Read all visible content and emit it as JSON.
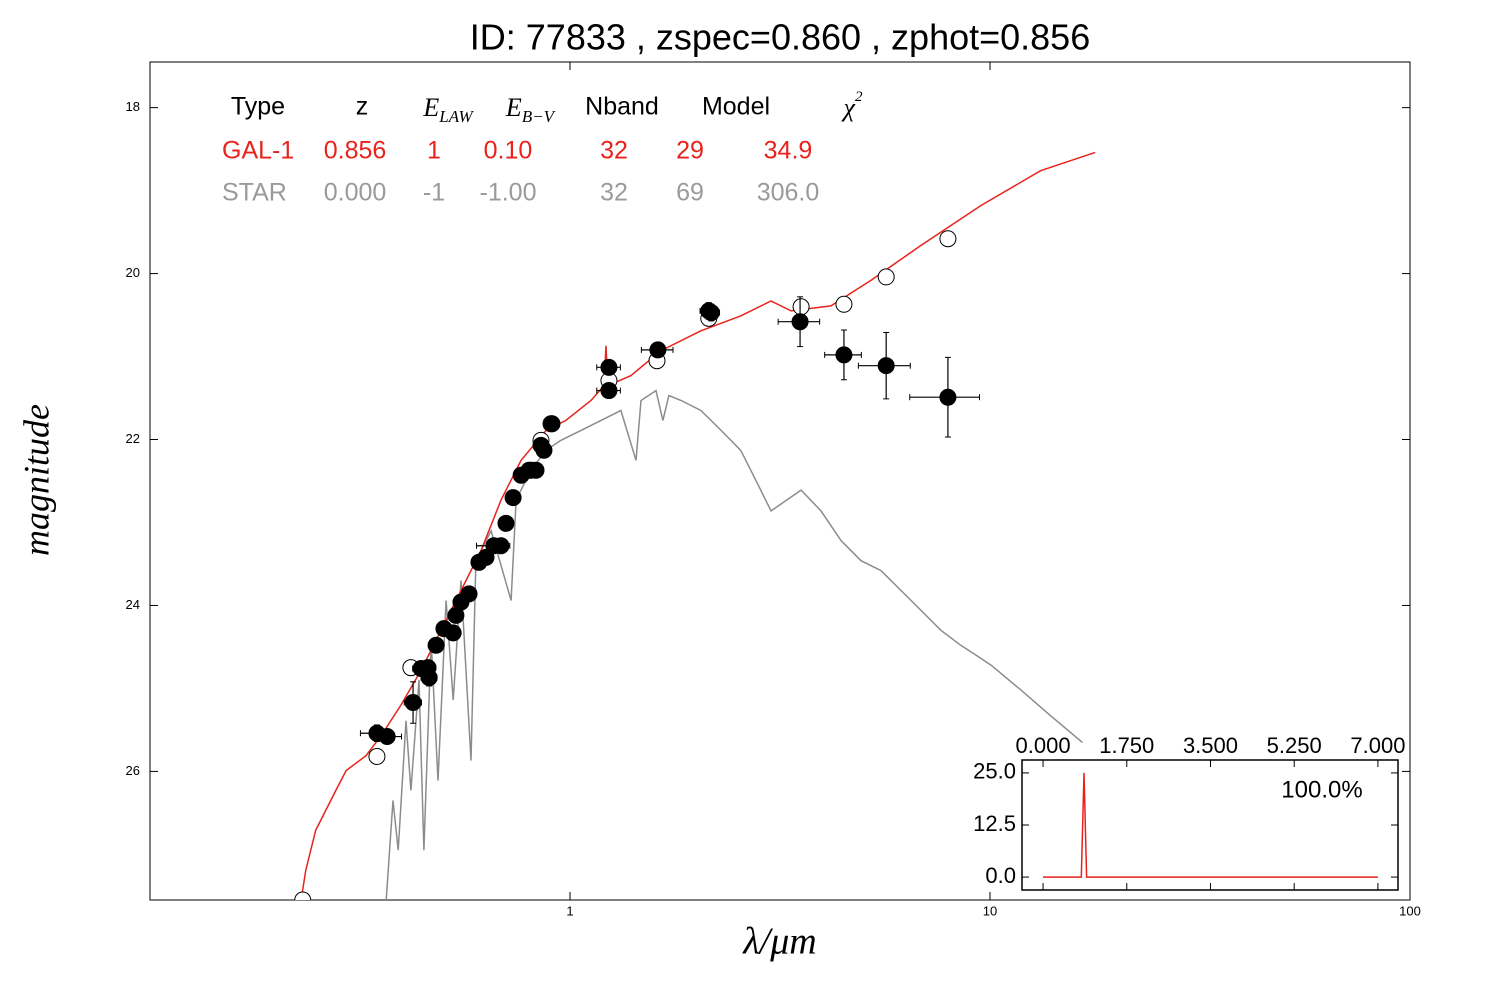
{
  "chart_data": [
    {
      "type": "line",
      "title": "ID:  77833 , zspec=0.860 , zphot=0.856",
      "xlabel": "λ/μm",
      "ylabel": "magnitude",
      "xlog": true,
      "xlim": [
        0.1,
        100
      ],
      "xticks": [
        1,
        10,
        100
      ],
      "ylim": [
        27.55,
        17.45
      ],
      "yticks": [
        18,
        20,
        22,
        24,
        26
      ],
      "table": {
        "header": [
          "Type",
          "z",
          {
            "base": "E",
            "sub": "LAW"
          },
          {
            "base": "E",
            "sub": "B−V"
          },
          "Nband",
          "Model",
          {
            "base": "χ",
            "sup": "2"
          }
        ],
        "rows": [
          {
            "color": "#e8231c",
            "cells": [
              "GAL-1",
              "0.856",
              "1",
              "0.10",
              "32",
              "29",
              "34.9"
            ]
          },
          {
            "color": "#9a9a9a",
            "cells": [
              "STAR",
              "0.000",
              "-1",
              "-1.00",
              "32",
              "69",
              "306.0"
            ]
          }
        ]
      },
      "series": [
        {
          "style": "line",
          "color": "#8c8c8c",
          "x": [
            0.365,
            0.379,
            0.39,
            0.407,
            0.418,
            0.437,
            0.449,
            0.467,
            0.485,
            0.507,
            0.527,
            0.55,
            0.581,
            0.597,
            0.649,
            0.724,
            0.744,
            0.807,
            0.877,
            0.952,
            1.062,
            1.185,
            1.322,
            1.436,
            1.476,
            1.602,
            1.664,
            1.72,
            1.84,
            2.05,
            2.29,
            2.55,
            2.77,
            3.01,
            3.55,
            3.96,
            4.42,
            4.93,
            5.5,
            6.14,
            6.85,
            7.64,
            8.52,
            9.27,
            10.06,
            11.85,
            13.95,
            16.6
          ],
          "y": [
            27.55,
            26.35,
            26.95,
            25.39,
            26.23,
            24.9,
            26.95,
            24.42,
            26.11,
            23.94,
            25.14,
            23.7,
            25.87,
            23.46,
            23.1,
            23.94,
            22.73,
            22.37,
            22.13,
            22.01,
            21.89,
            21.77,
            21.65,
            22.25,
            21.53,
            21.41,
            21.77,
            21.47,
            21.53,
            21.65,
            21.89,
            22.13,
            22.49,
            22.86,
            22.61,
            22.86,
            23.22,
            23.46,
            23.58,
            23.82,
            24.06,
            24.3,
            24.48,
            24.6,
            24.72,
            25.02,
            25.33,
            25.65
          ]
        },
        {
          "style": "line",
          "color": "#e8231c",
          "x": [
            0.229,
            0.235,
            0.248,
            0.277,
            0.293,
            0.327,
            0.355,
            0.396,
            0.442,
            0.493,
            0.55,
            0.614,
            0.685,
            0.765,
            0.877,
            0.978,
            1.122,
            1.205,
            1.218,
            1.23,
            1.397,
            1.646,
            2.05,
            2.55,
            3.01,
            3.36,
            4.18,
            5.21,
            6.85,
            9.52,
            13.2,
            17.8
          ],
          "y": [
            27.55,
            27.19,
            26.71,
            26.23,
            25.99,
            25.81,
            25.57,
            25.2,
            24.78,
            24.3,
            23.82,
            23.34,
            22.73,
            22.25,
            21.89,
            21.77,
            21.53,
            21.35,
            20.87,
            21.35,
            21.23,
            20.93,
            20.69,
            20.51,
            20.33,
            20.45,
            20.39,
            20.08,
            19.66,
            19.18,
            18.76,
            18.54
          ]
        },
        {
          "style": "open",
          "color": "#000000",
          "x": [
            0.231,
            0.347,
            0.418,
            0.808,
            0.853,
            0.901,
            1.238,
            1.611,
            2.14,
            3.55,
            4.49,
            5.66,
            7.94
          ],
          "y": [
            27.55,
            25.82,
            24.75,
            22.37,
            22.01,
            21.81,
            21.29,
            21.05,
            20.54,
            20.4,
            20.37,
            20.04,
            19.58
          ]
        },
        {
          "style": "filled",
          "color": "#000000",
          "x": [
            0.347,
            0.367,
            0.423,
            0.442,
            0.459,
            0.462,
            0.48,
            0.501,
            0.527,
            0.535,
            0.55,
            0.575,
            0.607,
            0.631,
            0.659,
            0.685,
            0.704,
            0.732,
            0.765,
            0.799,
            0.83,
            0.853,
            0.867,
            0.906,
            1.238,
            1.238,
            1.619,
            2.14,
            2.17,
            3.53,
            4.49,
            5.66,
            7.94
          ],
          "y": [
            25.54,
            25.58,
            25.17,
            24.76,
            24.75,
            24.87,
            24.48,
            24.28,
            24.33,
            24.12,
            23.96,
            23.86,
            23.48,
            23.42,
            23.28,
            23.28,
            23.01,
            22.7,
            22.43,
            22.37,
            22.37,
            22.07,
            22.13,
            21.81,
            21.13,
            21.41,
            20.92,
            20.45,
            20.47,
            20.58,
            20.98,
            21.11,
            21.49
          ],
          "xerr": [
            0.03,
            0.03,
            0.02,
            0.02,
            0.02,
            0.02,
            0.02,
            0.02,
            0.02,
            0.02,
            0.02,
            0.02,
            0.02,
            0.02,
            0.06,
            0.02,
            0.02,
            0.02,
            0.02,
            0.02,
            0.02,
            0.02,
            0.02,
            0.03,
            0.08,
            0.08,
            0.14,
            0.1,
            0.1,
            0.4,
            0.45,
            0.8,
            1.5
          ],
          "yerr": [
            0.1,
            0.05,
            0.25,
            0.05,
            0.05,
            0.1,
            0.05,
            0.05,
            0.05,
            0.05,
            0.05,
            0.05,
            0.05,
            0.05,
            0.05,
            0.05,
            0.05,
            0.05,
            0.05,
            0.05,
            0.05,
            0.05,
            0.05,
            0.05,
            0.05,
            0.05,
            0.05,
            0.1,
            0.1,
            0.3,
            0.3,
            0.4,
            0.48
          ]
        }
      ]
    },
    {
      "type": "line",
      "label": "100.0%",
      "xlim": [
        -0.44,
        7.42
      ],
      "xticks": [
        {
          "value": 0,
          "label": "0.000"
        },
        {
          "value": 1.75,
          "label": "1.750"
        },
        {
          "value": 3.5,
          "label": "3.500"
        },
        {
          "value": 5.25,
          "label": "5.250"
        },
        {
          "value": 7,
          "label": "7.000"
        }
      ],
      "ylim": [
        -3.1,
        28.1
      ],
      "yticks": [
        {
          "value": 0,
          "label": "0.0"
        },
        {
          "value": 12.5,
          "label": "12.5"
        },
        {
          "value": 25,
          "label": "25.0"
        }
      ],
      "series": [
        {
          "color": "#e8231c",
          "x": [
            0,
            0.8,
            0.856,
            0.91,
            7
          ],
          "y": [
            0,
            0,
            25,
            0,
            0
          ]
        }
      ]
    }
  ]
}
